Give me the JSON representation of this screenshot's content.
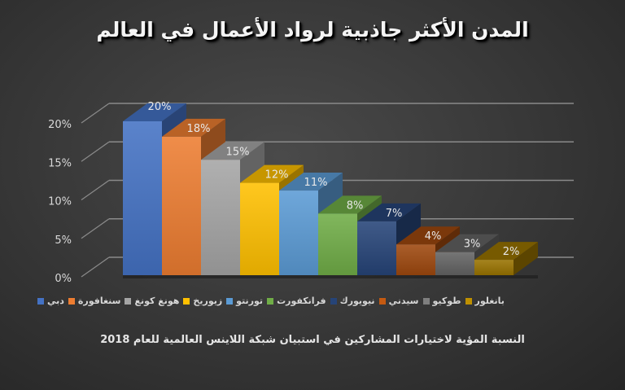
{
  "chart_data": {
    "type": "bar",
    "title": "المدن الأكثر جاذبية لرواد الأعمال في العالم",
    "subtitle": "النسبة المؤية لاختيارات المشاركين في استبيان شبكة اللاينس العالمية للعام 2018",
    "xlabel": "",
    "ylabel": "",
    "ylim": [
      0,
      20
    ],
    "yticks": [
      "0%",
      "5%",
      "10%",
      "15%",
      "20%"
    ],
    "grid": true,
    "legend_position": "bottom",
    "style": "3d-column",
    "categories": [
      "دبي",
      "سنغافورة",
      "هونغ كونغ",
      "زيوريخ",
      "تورنتو",
      "فرانكفورت",
      "نيويورك",
      "سيدني",
      "طوكيو",
      "بانغلور"
    ],
    "values": [
      20,
      18,
      15,
      12,
      11,
      8,
      7,
      4,
      3,
      2
    ],
    "data_labels": [
      "20%",
      "18%",
      "15%",
      "12%",
      "11%",
      "8%",
      "7%",
      "4%",
      "3%",
      "2%"
    ],
    "colors": [
      "#4472c4",
      "#ed7d31",
      "#a5a5a5",
      "#ffc000",
      "#5b9bd5",
      "#70ad47",
      "#264478",
      "#9e480e",
      "#636363",
      "#997300"
    ]
  },
  "page": {
    "title": "المدن الأكثر جاذبية لرواد الأعمال في العالم",
    "footer": "النسبة المؤية لاختيارات المشاركين في استبيان شبكة اللاينس العالمية للعام 2018"
  },
  "legend": {
    "items": [
      {
        "label": "دبي",
        "color": "#4472c4"
      },
      {
        "label": "سنغافورة",
        "color": "#ed7d31"
      },
      {
        "label": "هونغ كونغ",
        "color": "#a5a5a5"
      },
      {
        "label": "زيوريخ",
        "color": "#ffc000"
      },
      {
        "label": "تورنتو",
        "color": "#5b9bd5"
      },
      {
        "label": "فرانكفورت",
        "color": "#70ad47"
      },
      {
        "label": "نيويورك",
        "color": "#264478"
      },
      {
        "label": "سيدني",
        "color": "#c55a11"
      },
      {
        "label": "طوكيو",
        "color": "#7f7f7f"
      },
      {
        "label": "بانغلور",
        "color": "#bf9000"
      }
    ]
  }
}
